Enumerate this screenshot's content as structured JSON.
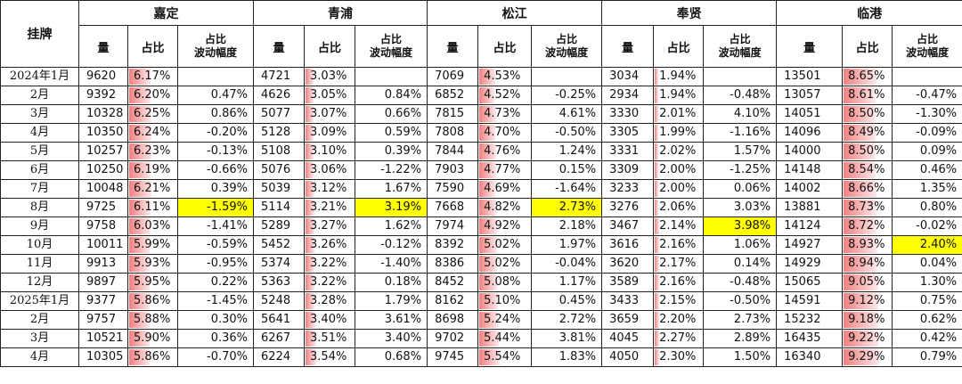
{
  "header": {
    "corner_label": "挂牌",
    "districts": [
      "嘉定",
      "青浦",
      "松江",
      "奉贤",
      "临港"
    ],
    "col_volume": "量",
    "col_share": "占比",
    "col_fluct_line1": "占比",
    "col_fluct_line2": "波动幅度"
  },
  "colors": {
    "bar_start": "#f08080",
    "bar_end": "#fde9ea",
    "highlight": "#ffff00"
  },
  "rows": [
    {
      "label": "2024年1月",
      "cells": [
        {
          "vol": "9620",
          "share": "6.17%",
          "fluct": ""
        },
        {
          "vol": "4721",
          "share": "3.03%",
          "fluct": ""
        },
        {
          "vol": "7069",
          "share": "4.53%",
          "fluct": ""
        },
        {
          "vol": "3034",
          "share": "1.94%",
          "fluct": ""
        },
        {
          "vol": "13501",
          "share": "8.65%",
          "fluct": ""
        }
      ]
    },
    {
      "label": "2月",
      "cells": [
        {
          "vol": "9392",
          "share": "6.20%",
          "fluct": "0.47%"
        },
        {
          "vol": "4626",
          "share": "3.05%",
          "fluct": "0.84%"
        },
        {
          "vol": "6852",
          "share": "4.52%",
          "fluct": "-0.25%"
        },
        {
          "vol": "2934",
          "share": "1.94%",
          "fluct": "-0.48%"
        },
        {
          "vol": "13057",
          "share": "8.61%",
          "fluct": "-0.47%"
        }
      ]
    },
    {
      "label": "3月",
      "cells": [
        {
          "vol": "10328",
          "share": "6.25%",
          "fluct": "0.86%"
        },
        {
          "vol": "5077",
          "share": "3.07%",
          "fluct": "0.66%"
        },
        {
          "vol": "7815",
          "share": "4.73%",
          "fluct": "4.61%"
        },
        {
          "vol": "3330",
          "share": "2.01%",
          "fluct": "4.10%"
        },
        {
          "vol": "14051",
          "share": "8.50%",
          "fluct": "-1.30%"
        }
      ]
    },
    {
      "label": "4月",
      "cells": [
        {
          "vol": "10350",
          "share": "6.24%",
          "fluct": "-0.20%"
        },
        {
          "vol": "5128",
          "share": "3.09%",
          "fluct": "0.59%"
        },
        {
          "vol": "7808",
          "share": "4.70%",
          "fluct": "-0.50%"
        },
        {
          "vol": "3305",
          "share": "1.99%",
          "fluct": "-1.16%"
        },
        {
          "vol": "14096",
          "share": "8.49%",
          "fluct": "-0.09%"
        }
      ]
    },
    {
      "label": "5月",
      "cells": [
        {
          "vol": "10257",
          "share": "6.23%",
          "fluct": "-0.13%"
        },
        {
          "vol": "5108",
          "share": "3.10%",
          "fluct": "0.39%"
        },
        {
          "vol": "7844",
          "share": "4.76%",
          "fluct": "1.24%"
        },
        {
          "vol": "3331",
          "share": "2.02%",
          "fluct": "1.57%"
        },
        {
          "vol": "14000",
          "share": "8.50%",
          "fluct": "0.09%"
        }
      ]
    },
    {
      "label": "6月",
      "cells": [
        {
          "vol": "10250",
          "share": "6.19%",
          "fluct": "-0.66%"
        },
        {
          "vol": "5076",
          "share": "3.06%",
          "fluct": "-1.22%"
        },
        {
          "vol": "7903",
          "share": "4.77%",
          "fluct": "0.15%"
        },
        {
          "vol": "3309",
          "share": "2.00%",
          "fluct": "-1.25%"
        },
        {
          "vol": "14148",
          "share": "8.54%",
          "fluct": "0.46%"
        }
      ]
    },
    {
      "label": "7月",
      "cells": [
        {
          "vol": "10048",
          "share": "6.21%",
          "fluct": "0.39%"
        },
        {
          "vol": "5039",
          "share": "3.12%",
          "fluct": "1.67%"
        },
        {
          "vol": "7590",
          "share": "4.69%",
          "fluct": "-1.64%"
        },
        {
          "vol": "3233",
          "share": "2.00%",
          "fluct": "0.06%"
        },
        {
          "vol": "14002",
          "share": "8.66%",
          "fluct": "1.35%"
        }
      ]
    },
    {
      "label": "8月",
      "cells": [
        {
          "vol": "9725",
          "share": "6.11%",
          "fluct": "-1.59%",
          "hl": true
        },
        {
          "vol": "5114",
          "share": "3.21%",
          "fluct": "3.19%",
          "hl": true
        },
        {
          "vol": "7668",
          "share": "4.82%",
          "fluct": "2.73%",
          "hl": true
        },
        {
          "vol": "3276",
          "share": "2.06%",
          "fluct": "3.03%"
        },
        {
          "vol": "13881",
          "share": "8.73%",
          "fluct": "0.80%"
        }
      ]
    },
    {
      "label": "9月",
      "cells": [
        {
          "vol": "9758",
          "share": "6.03%",
          "fluct": "-1.41%"
        },
        {
          "vol": "5289",
          "share": "3.27%",
          "fluct": "1.62%"
        },
        {
          "vol": "7974",
          "share": "4.92%",
          "fluct": "2.18%"
        },
        {
          "vol": "3467",
          "share": "2.14%",
          "fluct": "3.98%",
          "hl": true
        },
        {
          "vol": "14124",
          "share": "8.72%",
          "fluct": "-0.02%"
        }
      ]
    },
    {
      "label": "10月",
      "cells": [
        {
          "vol": "10011",
          "share": "5.99%",
          "fluct": "-0.59%"
        },
        {
          "vol": "5452",
          "share": "3.26%",
          "fluct": "-0.12%"
        },
        {
          "vol": "8392",
          "share": "5.02%",
          "fluct": "1.97%"
        },
        {
          "vol": "3616",
          "share": "2.16%",
          "fluct": "1.06%"
        },
        {
          "vol": "14927",
          "share": "8.93%",
          "fluct": "2.40%",
          "hl": true
        }
      ]
    },
    {
      "label": "11月",
      "cells": [
        {
          "vol": "9913",
          "share": "5.93%",
          "fluct": "-0.95%"
        },
        {
          "vol": "5374",
          "share": "3.22%",
          "fluct": "-1.40%"
        },
        {
          "vol": "8386",
          "share": "5.02%",
          "fluct": "-0.04%"
        },
        {
          "vol": "3620",
          "share": "2.17%",
          "fluct": "0.14%"
        },
        {
          "vol": "14929",
          "share": "8.94%",
          "fluct": "0.04%"
        }
      ]
    },
    {
      "label": "12月",
      "cells": [
        {
          "vol": "9897",
          "share": "5.95%",
          "fluct": "0.22%"
        },
        {
          "vol": "5363",
          "share": "3.22%",
          "fluct": "0.18%"
        },
        {
          "vol": "8452",
          "share": "5.08%",
          "fluct": "1.17%"
        },
        {
          "vol": "3589",
          "share": "2.16%",
          "fluct": "-0.48%"
        },
        {
          "vol": "15065",
          "share": "9.05%",
          "fluct": "1.30%"
        }
      ]
    },
    {
      "label": "2025年1月",
      "cells": [
        {
          "vol": "9377",
          "share": "5.86%",
          "fluct": "-1.45%"
        },
        {
          "vol": "5248",
          "share": "3.28%",
          "fluct": "1.79%"
        },
        {
          "vol": "8162",
          "share": "5.10%",
          "fluct": "0.45%"
        },
        {
          "vol": "3433",
          "share": "2.15%",
          "fluct": "-0.50%"
        },
        {
          "vol": "14591",
          "share": "9.12%",
          "fluct": "0.75%"
        }
      ]
    },
    {
      "label": "2月",
      "cells": [
        {
          "vol": "9757",
          "share": "5.88%",
          "fluct": "0.30%"
        },
        {
          "vol": "5641",
          "share": "3.40%",
          "fluct": "3.61%"
        },
        {
          "vol": "8698",
          "share": "5.24%",
          "fluct": "2.72%"
        },
        {
          "vol": "3659",
          "share": "2.20%",
          "fluct": "2.73%"
        },
        {
          "vol": "15232",
          "share": "9.18%",
          "fluct": "0.62%"
        }
      ]
    },
    {
      "label": "3月",
      "cells": [
        {
          "vol": "10521",
          "share": "5.90%",
          "fluct": "0.36%"
        },
        {
          "vol": "6267",
          "share": "3.51%",
          "fluct": "3.40%"
        },
        {
          "vol": "9702",
          "share": "5.44%",
          "fluct": "3.81%"
        },
        {
          "vol": "4045",
          "share": "2.27%",
          "fluct": "2.89%"
        },
        {
          "vol": "16435",
          "share": "9.22%",
          "fluct": "0.42%"
        }
      ]
    },
    {
      "label": "4月",
      "cells": [
        {
          "vol": "10305",
          "share": "5.86%",
          "fluct": "-0.70%"
        },
        {
          "vol": "6224",
          "share": "3.54%",
          "fluct": "0.68%"
        },
        {
          "vol": "9745",
          "share": "5.54%",
          "fluct": "1.83%"
        },
        {
          "vol": "4050",
          "share": "2.30%",
          "fluct": "1.50%"
        },
        {
          "vol": "16340",
          "share": "9.29%",
          "fluct": "0.79%"
        }
      ]
    }
  ]
}
